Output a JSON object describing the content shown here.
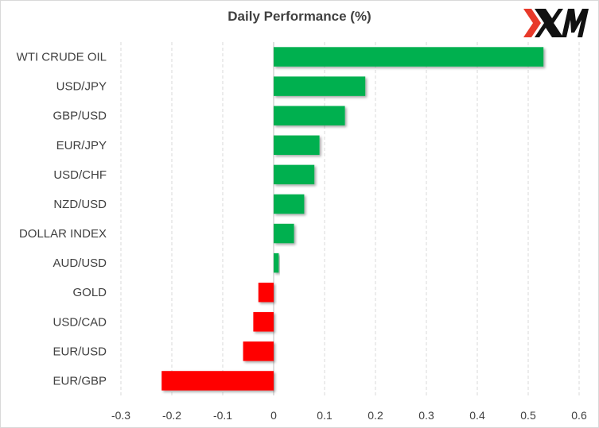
{
  "brand": {
    "logo_text": "XM",
    "colors": {
      "logo_red": "#e8392a",
      "logo_black": "#111111"
    }
  },
  "chart_data": {
    "type": "bar",
    "orientation": "horizontal",
    "title": "Daily Performance  (%)",
    "xlabel": "",
    "ylabel": "",
    "categories": [
      "WTI CRUDE OIL",
      "USD/JPY",
      "GBP/USD",
      "EUR/JPY",
      "USD/CHF",
      "NZD/USD",
      "DOLLAR INDEX",
      "AUD/USD",
      "GOLD",
      "USD/CAD",
      "EUR/USD",
      "EUR/GBP"
    ],
    "values": [
      0.53,
      0.18,
      0.14,
      0.09,
      0.08,
      0.06,
      0.04,
      0.01,
      -0.03,
      -0.04,
      -0.06,
      -0.22
    ],
    "xlim": [
      -0.3,
      0.6
    ],
    "xticks": [
      -0.3,
      -0.2,
      -0.1,
      0,
      0.1,
      0.2,
      0.3,
      0.4,
      0.5,
      0.6
    ],
    "xtick_labels": [
      "-0.3",
      "-0.2",
      "-0.1",
      "0",
      "0.1",
      "0.2",
      "0.3",
      "0.4",
      "0.5",
      "0.6"
    ],
    "grid": "vertical dashed",
    "legend": "none",
    "colors": {
      "positive": "#00b050",
      "negative": "#ff0000",
      "axis": "#bfbfbf",
      "grid": "#d9d9d9",
      "text": "#404040"
    }
  }
}
